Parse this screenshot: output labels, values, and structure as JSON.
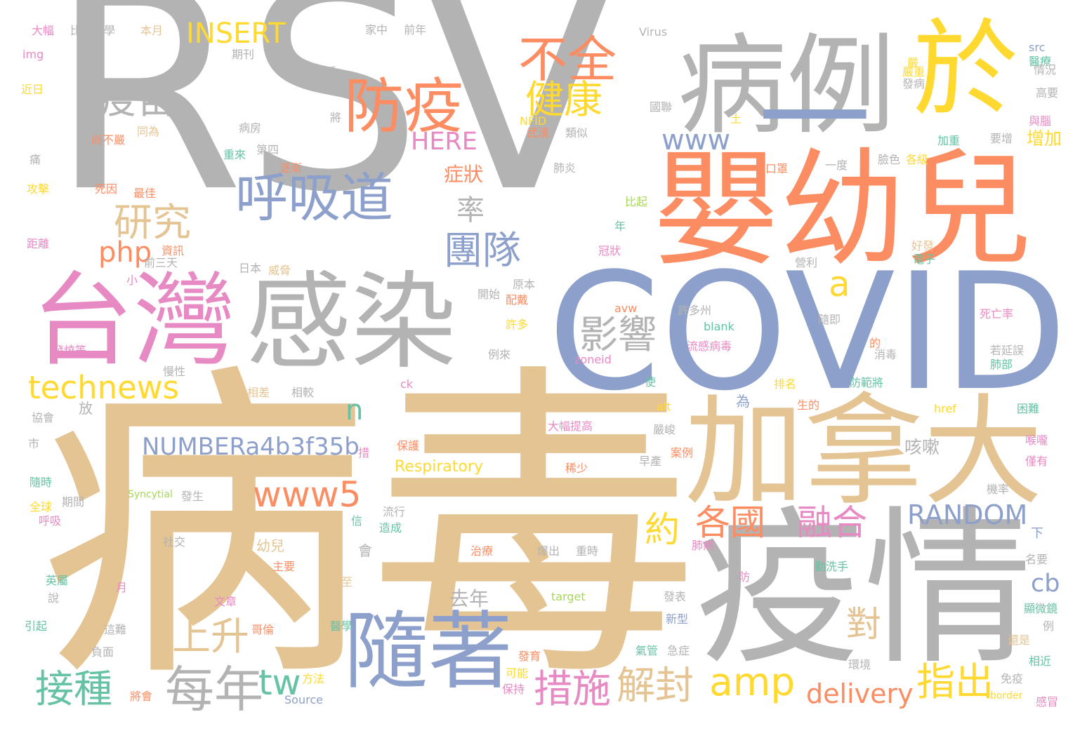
{
  "palette": {
    "gray": "#b3b3b3",
    "tan": "#e5c494",
    "blue": "#8da0cb",
    "orange": "#fc8d62",
    "pink": "#e78ac3",
    "yellow": "#ffd92f",
    "green": "#66c2a5",
    "lime": "#a6d854"
  },
  "words": [
    {
      "text": "RSV",
      "color": "gray"
    },
    {
      "text": "病毒",
      "color": "tan"
    },
    {
      "text": "COVID",
      "color": "blue"
    },
    {
      "text": "疫情",
      "color": "gray"
    },
    {
      "text": "嬰幼兒",
      "color": "orange"
    },
    {
      "text": "加拿大",
      "color": "tan"
    },
    {
      "text": "病例",
      "color": "gray"
    },
    {
      "text": "於",
      "color": "yellow"
    },
    {
      "text": "台灣",
      "color": "pink"
    },
    {
      "text": "感染",
      "color": "gray"
    },
    {
      "text": "一",
      "color": "blue"
    },
    {
      "text": "隨著",
      "color": "blue"
    },
    {
      "text": "防疫",
      "color": "orange"
    },
    {
      "text": "呼吸道",
      "color": "blue"
    },
    {
      "text": "疫苗",
      "color": "gray"
    },
    {
      "text": "不全",
      "color": "orange"
    },
    {
      "text": "健康",
      "color": "yellow"
    },
    {
      "text": "technews",
      "color": "yellow"
    },
    {
      "text": "每年",
      "color": "gray"
    },
    {
      "text": "接種",
      "color": "green"
    },
    {
      "text": "amp",
      "color": "yellow"
    },
    {
      "text": "措施",
      "color": "pink"
    },
    {
      "text": "解封",
      "color": "tan"
    },
    {
      "text": "指出",
      "color": "yellow"
    },
    {
      "text": "delivery",
      "color": "orange"
    },
    {
      "text": "影響",
      "color": "gray"
    },
    {
      "text": "研究",
      "color": "tan"
    },
    {
      "text": "團隊",
      "color": "blue"
    },
    {
      "text": "www5",
      "color": "orange"
    },
    {
      "text": "NUMBERa4b3f35b",
      "color": "blue"
    },
    {
      "text": "各國",
      "color": "orange"
    },
    {
      "text": "約",
      "color": "yellow"
    },
    {
      "text": "融合",
      "color": "pink"
    },
    {
      "text": "RANDOM",
      "color": "blue"
    },
    {
      "text": "上升",
      "color": "tan"
    },
    {
      "text": "www",
      "color": "blue"
    },
    {
      "text": "INSERT",
      "color": "yellow"
    },
    {
      "text": "php",
      "color": "orange"
    },
    {
      "text": "HERE",
      "color": "pink"
    },
    {
      "text": "率",
      "color": "gray"
    },
    {
      "text": "tw",
      "color": "green"
    },
    {
      "text": "對",
      "color": "tan"
    },
    {
      "text": "cb",
      "color": "blue"
    },
    {
      "text": "a",
      "color": "yellow"
    },
    {
      "text": "n",
      "color": "green"
    },
    {
      "text": "症狀",
      "color": "orange"
    },
    {
      "text": "去年",
      "color": "gray"
    },
    {
      "text": "咳嗽",
      "color": "gray"
    },
    {
      "text": "Respiratory",
      "color": "yellow"
    },
    {
      "text": "增加",
      "color": "yellow"
    },
    {
      "text": "大幅",
      "color": "pink"
    },
    {
      "text": "比亞大學",
      "color": "gray"
    },
    {
      "text": "本月",
      "color": "tan"
    },
    {
      "text": "家中",
      "color": "gray"
    },
    {
      "text": "前年",
      "color": "gray"
    },
    {
      "text": "Virus",
      "color": "gray"
    },
    {
      "text": "src",
      "color": "blue"
    },
    {
      "text": "img",
      "color": "pink"
    },
    {
      "text": "期刊",
      "color": "gray"
    },
    {
      "text": "醫療",
      "color": "green"
    },
    {
      "text": "近日",
      "color": "yellow"
    },
    {
      "text": "情況",
      "color": "gray"
    },
    {
      "text": "嚴重",
      "color": "yellow"
    },
    {
      "text": "高要",
      "color": "gray"
    },
    {
      "text": "國聯",
      "color": "gray"
    },
    {
      "text": "NFID",
      "color": "yellow"
    },
    {
      "text": "武漢",
      "color": "orange"
    },
    {
      "text": "類似",
      "color": "gray"
    },
    {
      "text": "尚不嚴",
      "color": "orange"
    },
    {
      "text": "同為",
      "color": "tan"
    },
    {
      "text": "病房",
      "color": "gray"
    },
    {
      "text": "重來",
      "color": "green"
    },
    {
      "text": "第四",
      "color": "gray"
    },
    {
      "text": "加重",
      "color": "green"
    },
    {
      "text": "要增",
      "color": "gray"
    },
    {
      "text": "逐漸",
      "color": "orange"
    },
    {
      "text": "肺炎",
      "color": "gray"
    },
    {
      "text": "口罩",
      "color": "orange"
    },
    {
      "text": "一度",
      "color": "gray"
    },
    {
      "text": "臉色",
      "color": "gray"
    },
    {
      "text": "各級",
      "color": "yellow"
    },
    {
      "text": "死因",
      "color": "orange"
    },
    {
      "text": "最佳",
      "color": "orange"
    },
    {
      "text": "攻擊",
      "color": "yellow"
    },
    {
      "text": "比起",
      "color": "lime"
    },
    {
      "text": "距離",
      "color": "pink"
    },
    {
      "text": "資訊",
      "color": "orange"
    },
    {
      "text": "前三天",
      "color": "gray"
    },
    {
      "text": "日本",
      "color": "gray"
    },
    {
      "text": "威脅",
      "color": "tan"
    },
    {
      "text": "冠狀",
      "color": "pink"
    },
    {
      "text": "營利",
      "color": "gray"
    },
    {
      "text": "好發",
      "color": "tan"
    },
    {
      "text": "電子",
      "color": "green"
    },
    {
      "text": "發燒等",
      "color": "pink"
    },
    {
      "text": "慢性",
      "color": "gray"
    },
    {
      "text": "配戴",
      "color": "orange"
    },
    {
      "text": "開始",
      "color": "gray"
    },
    {
      "text": "原本",
      "color": "gray"
    },
    {
      "text": "許多",
      "color": "yellow"
    },
    {
      "text": "許多州",
      "color": "gray"
    },
    {
      "text": "blank",
      "color": "green"
    },
    {
      "text": "流感病毒",
      "color": "pink"
    },
    {
      "text": "隨即",
      "color": "gray"
    },
    {
      "text": "死亡率",
      "color": "pink"
    },
    {
      "text": "zoneid",
      "color": "pink"
    },
    {
      "text": "消毒",
      "color": "gray"
    },
    {
      "text": "肺部",
      "color": "green"
    },
    {
      "text": "若延誤",
      "color": "gray"
    },
    {
      "text": "防範將",
      "color": "green"
    },
    {
      "text": "排名",
      "color": "yellow"
    },
    {
      "text": "相較",
      "color": "gray"
    },
    {
      "text": "相差",
      "color": "tan"
    },
    {
      "text": "ck",
      "color": "pink"
    },
    {
      "text": "alt",
      "color": "yellow"
    },
    {
      "text": "生的",
      "color": "orange"
    },
    {
      "text": "href",
      "color": "yellow"
    },
    {
      "text": "困難",
      "color": "green"
    },
    {
      "text": "大幅提高",
      "color": "pink"
    },
    {
      "text": "嚴峻",
      "color": "gray"
    },
    {
      "text": "案例",
      "color": "orange"
    },
    {
      "text": "保護",
      "color": "orange"
    },
    {
      "text": "喉嚨",
      "color": "pink"
    },
    {
      "text": "僅有",
      "color": "pink"
    },
    {
      "text": "稀少",
      "color": "orange"
    },
    {
      "text": "早產",
      "color": "gray"
    },
    {
      "text": "機率",
      "color": "gray"
    },
    {
      "text": "Syncytial",
      "color": "lime"
    },
    {
      "text": "發生",
      "color": "gray"
    },
    {
      "text": "期間",
      "color": "gray"
    },
    {
      "text": "流行",
      "color": "gray"
    },
    {
      "text": "造成",
      "color": "green"
    },
    {
      "text": "治療",
      "color": "orange"
    },
    {
      "text": "爆出",
      "color": "gray"
    },
    {
      "text": "重時",
      "color": "gray"
    },
    {
      "text": "幼兒",
      "color": "tan"
    },
    {
      "text": "主要",
      "color": "orange"
    },
    {
      "text": "社交",
      "color": "gray"
    },
    {
      "text": "肺病",
      "color": "pink"
    },
    {
      "text": "勤洗手",
      "color": "green"
    },
    {
      "text": "名要",
      "color": "gray"
    },
    {
      "text": "英屬",
      "color": "green"
    },
    {
      "text": "全球",
      "color": "yellow"
    },
    {
      "text": "隨時",
      "color": "green"
    },
    {
      "text": "呼吸",
      "color": "pink"
    },
    {
      "text": "協會",
      "color": "gray"
    },
    {
      "text": "市",
      "color": "gray"
    },
    {
      "text": "月",
      "color": "pink"
    },
    {
      "text": "說",
      "color": "gray"
    },
    {
      "text": "文章",
      "color": "pink"
    },
    {
      "text": "昇至",
      "color": "tan"
    },
    {
      "text": "target",
      "color": "lime"
    },
    {
      "text": "發表",
      "color": "gray"
    },
    {
      "text": "新型",
      "color": "blue"
    },
    {
      "text": "急症",
      "color": "gray"
    },
    {
      "text": "氣管",
      "color": "green"
    },
    {
      "text": "還是",
      "color": "tan"
    },
    {
      "text": "顯微鏡",
      "color": "green"
    },
    {
      "text": "引起",
      "color": "green"
    },
    {
      "text": "這難",
      "color": "gray"
    },
    {
      "text": "哥倫",
      "color": "orange"
    },
    {
      "text": "醫學",
      "color": "green"
    },
    {
      "text": "負面",
      "color": "gray"
    },
    {
      "text": "發育",
      "color": "orange"
    },
    {
      "text": "可能",
      "color": "yellow"
    },
    {
      "text": "環境",
      "color": "gray"
    },
    {
      "text": "免疫",
      "color": "gray"
    },
    {
      "text": "相近",
      "color": "green"
    },
    {
      "text": "將會",
      "color": "orange"
    },
    {
      "text": "方法",
      "color": "yellow"
    },
    {
      "text": "Source",
      "color": "blue"
    },
    {
      "text": "保持",
      "color": "pink"
    },
    {
      "text": "border",
      "color": "yellow"
    },
    {
      "text": "感冒",
      "color": "pink"
    },
    {
      "text": "avw",
      "color": "orange"
    },
    {
      "text": "與腦",
      "color": "pink"
    },
    {
      "text": "發病",
      "color": "gray"
    },
    {
      "text": "放",
      "color": "gray"
    },
    {
      "text": "為",
      "color": "blue"
    },
    {
      "text": "會",
      "color": "gray"
    },
    {
      "text": "信",
      "color": "green"
    },
    {
      "text": "下",
      "color": "blue"
    },
    {
      "text": "例",
      "color": "gray"
    },
    {
      "text": "年",
      "color": "green"
    },
    {
      "text": "小",
      "color": "pink"
    },
    {
      "text": "痛",
      "color": "gray"
    },
    {
      "text": "使",
      "color": "green"
    },
    {
      "text": "的",
      "color": "orange"
    },
    {
      "text": "例來",
      "color": "gray"
    },
    {
      "text": "將",
      "color": "gray"
    },
    {
      "text": "土",
      "color": "yellow"
    },
    {
      "text": "嚴",
      "color": "yellow"
    },
    {
      "text": "措",
      "color": "pink"
    },
    {
      "text": "嚴重",
      "color": "gray"
    },
    {
      "text": "防",
      "color": "pink"
    }
  ]
}
